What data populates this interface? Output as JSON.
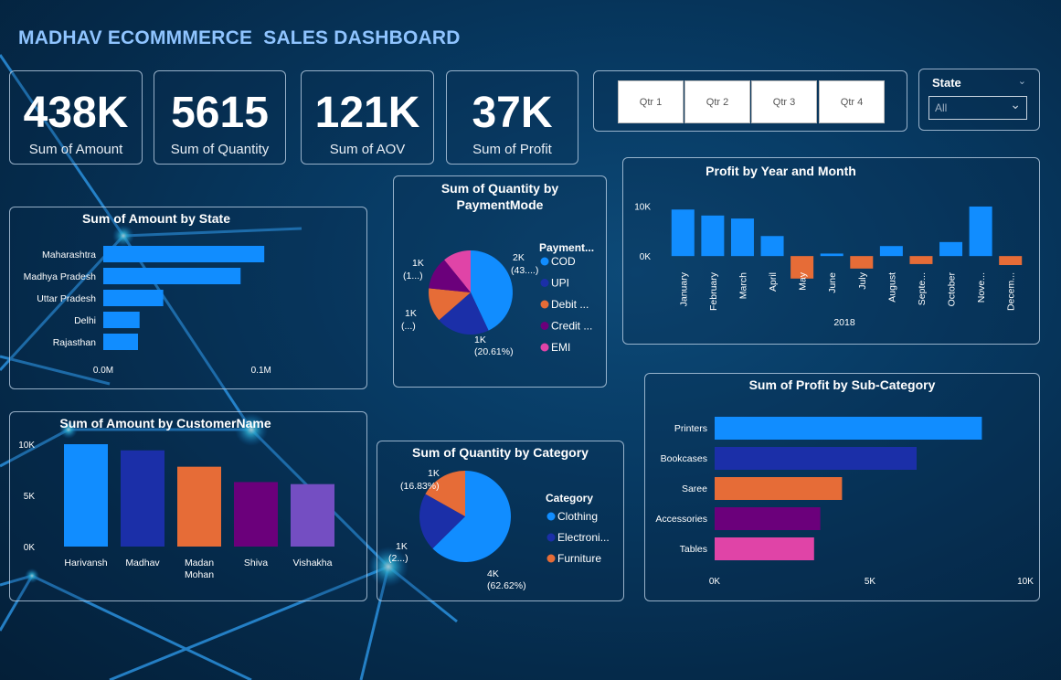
{
  "title": "MADHAV ECOMMMERCE  SALES DASHBOARD",
  "kpis": [
    {
      "value": "438K",
      "label": "Sum of Amount"
    },
    {
      "value": "5615",
      "label": "Sum of Quantity"
    },
    {
      "value": "121K",
      "label": "Sum of AOV"
    },
    {
      "value": "37K",
      "label": "Sum of Profit"
    }
  ],
  "quarters": [
    "Qtr 1",
    "Qtr 2",
    "Qtr 3",
    "Qtr 4"
  ],
  "state_filter": {
    "label": "State",
    "value": "All"
  },
  "colors": {
    "blue": "#118dff",
    "navy": "#1b2fa8",
    "orange": "#e66c37",
    "purple": "#6b007b",
    "pink": "#e044a7",
    "violet": "#744ec2"
  },
  "chart_data": [
    {
      "id": "amount_by_state",
      "type": "bar",
      "title": "Sum of Amount by State",
      "categories": [
        "Maharashtra",
        "Madhya Pradesh",
        "Uttar Pradesh",
        "Delhi",
        "Rajasthan"
      ],
      "values": [
        0.102,
        0.087,
        0.038,
        0.023,
        0.022
      ],
      "xticks": [
        "0.0M",
        "0.1M"
      ],
      "xlim": [
        0,
        0.11
      ]
    },
    {
      "id": "qty_by_payment",
      "type": "pie",
      "title": "Sum of Quantity by PaymentMode",
      "legend_title": "Payment...",
      "categories": [
        "COD",
        "UPI",
        "Debit ...",
        "Credit ...",
        "EMI"
      ],
      "values": [
        43.0,
        20.61,
        13.0,
        12.6,
        10.8
      ],
      "slice_labels": [
        {
          "value": "2K",
          "pct": "(43....)"
        },
        {
          "value": "1K",
          "pct": "(20.61%)"
        },
        {
          "value": "1K",
          "pct": "(...)"
        },
        {
          "value": "1K",
          "pct": "(1...)"
        }
      ]
    },
    {
      "id": "profit_by_month",
      "type": "bar",
      "title": "Profit by Year and Month",
      "categories": [
        "January",
        "February",
        "March",
        "April",
        "May",
        "June",
        "July",
        "August",
        "Septe...",
        "October",
        "Nove...",
        "Decem..."
      ],
      "values": [
        9300,
        8100,
        7500,
        4000,
        -4500,
        500,
        -2500,
        2000,
        -1600,
        2800,
        9900,
        -1800
      ],
      "yticks": [
        "10K",
        "0K"
      ],
      "ylim": [
        -6000,
        13000
      ],
      "xlabel": "2018"
    },
    {
      "id": "amount_by_customer",
      "type": "bar",
      "title": "Sum of Amount by CustomerName",
      "categories": [
        "Harivansh",
        "Madhav",
        "Madan Mohan",
        "Shiva",
        "Vishakha"
      ],
      "values": [
        10000,
        9400,
        7800,
        6300,
        6100
      ],
      "yticks": [
        "10K",
        "5K",
        "0K"
      ],
      "ylim": [
        0,
        10000
      ]
    },
    {
      "id": "qty_by_category",
      "type": "pie",
      "title": "Sum of Quantity by Category",
      "legend_title": "Category",
      "categories": [
        "Clothing",
        "Electroni...",
        "Furniture"
      ],
      "values": [
        62.62,
        20.55,
        16.83
      ],
      "slice_labels": [
        {
          "value": "4K",
          "pct": "(62.62%)"
        },
        {
          "value": "1K",
          "pct": "(2...)"
        },
        {
          "value": "1K",
          "pct": "(16.83%)"
        }
      ]
    },
    {
      "id": "profit_by_subcategory",
      "type": "bar",
      "title": "Sum of Profit by Sub-Category",
      "categories": [
        "Printers",
        "Bookcases",
        "Saree",
        "Accessories",
        "Tables"
      ],
      "values": [
        8600,
        6500,
        4100,
        3400,
        3200
      ],
      "xticks": [
        "0K",
        "5K",
        "10K"
      ],
      "xlim": [
        0,
        10000
      ]
    }
  ]
}
